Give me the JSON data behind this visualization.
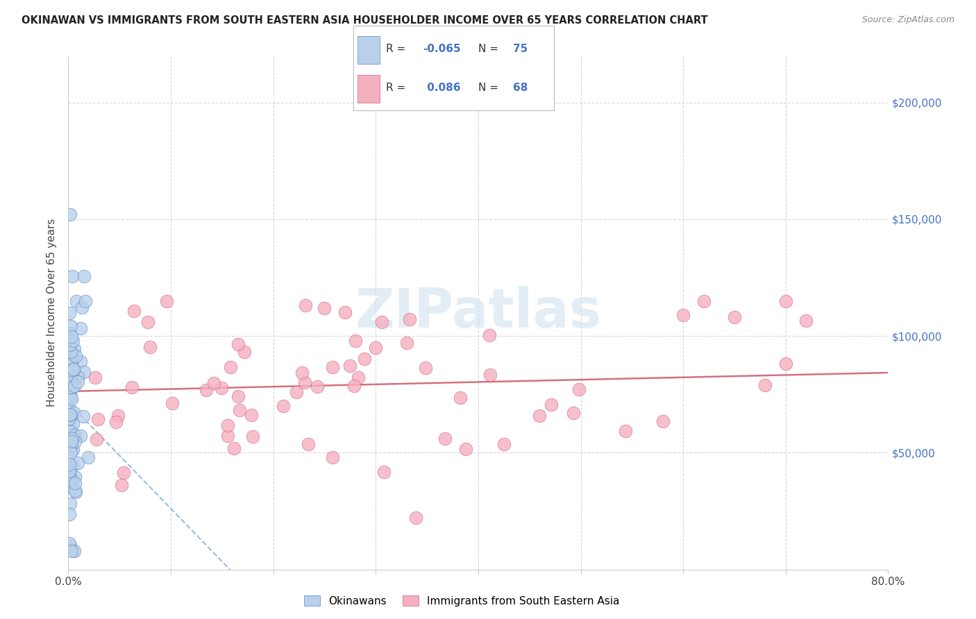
{
  "title": "OKINAWAN VS IMMIGRANTS FROM SOUTH EASTERN ASIA HOUSEHOLDER INCOME OVER 65 YEARS CORRELATION CHART",
  "source": "Source: ZipAtlas.com",
  "ylabel": "Householder Income Over 65 years",
  "xlim": [
    0.0,
    0.8
  ],
  "ylim": [
    0,
    220000
  ],
  "watermark_text": "ZIPatlas",
  "legend_R1": "-0.065",
  "legend_N1": "75",
  "legend_R2": "0.086",
  "legend_N2": "68",
  "legend_label1": "Okinawans",
  "legend_label2": "Immigrants from South Eastern Asia",
  "color_blue_fill": "#b8d0ea",
  "color_blue_edge": "#5585c5",
  "color_pink_fill": "#f5b0c0",
  "color_pink_edge": "#d06080",
  "color_trend_blue": "#8ab0d8",
  "color_trend_pink": "#d06070",
  "right_ytick_color": "#4472c4",
  "grid_color": "#cccccc",
  "title_color": "#222222",
  "source_color": "#888888"
}
